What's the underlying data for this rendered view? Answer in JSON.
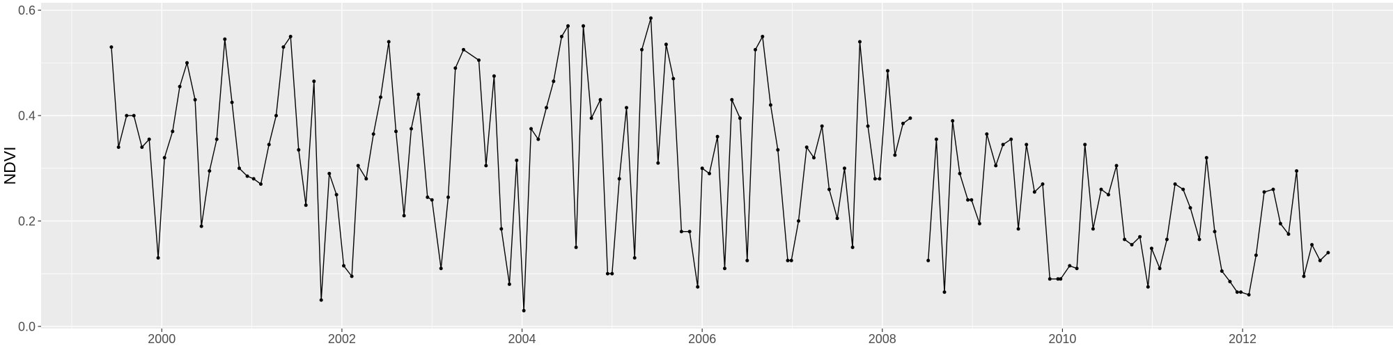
{
  "chart_data": {
    "type": "line",
    "title": "",
    "xlabel": "",
    "ylabel": "NDVI",
    "legend": false,
    "grid": true,
    "x_ticks": [
      2000,
      2002,
      2004,
      2006,
      2008,
      2010,
      2012
    ],
    "x_tick_labels": [
      "2000",
      "2002",
      "2004",
      "2006",
      "2008",
      "2010",
      "2012"
    ],
    "x_minor_ticks": [
      1999,
      2001,
      2003,
      2005,
      2007,
      2009,
      2011,
      2013
    ],
    "y_ticks": [
      0.0,
      0.2,
      0.4,
      0.6
    ],
    "y_tick_labels": [
      "0.0",
      "0.2",
      "0.4",
      "0.6"
    ],
    "y_minor_ticks": [
      0.1,
      0.3,
      0.5
    ],
    "xlim": [
      1998.66,
      2013.67
    ],
    "ylim": [
      -0.004,
      0.614
    ],
    "colors": {
      "panel_background": "#EBEBEB",
      "grid_major": "#FFFFFF",
      "grid_minor": "#FFFFFF",
      "line": "#000000",
      "point": "#000000",
      "axis_text": "#4D4D4D",
      "axis_title": "#000000",
      "tick_mark": "#333333"
    },
    "series": [
      {
        "name": "NDVI",
        "segments": [
          [
            [
              1999.44,
              0.53
            ],
            [
              1999.52,
              0.34
            ],
            [
              1999.61,
              0.4
            ],
            [
              1999.69,
              0.4
            ],
            [
              1999.78,
              0.34
            ],
            [
              1999.86,
              0.355
            ],
            [
              1999.96,
              0.13
            ],
            [
              2000.03,
              0.32
            ],
            [
              2000.12,
              0.37
            ],
            [
              2000.2,
              0.455
            ],
            [
              2000.28,
              0.5
            ],
            [
              2000.37,
              0.43
            ],
            [
              2000.44,
              0.19
            ],
            [
              2000.53,
              0.295
            ],
            [
              2000.61,
              0.355
            ],
            [
              2000.7,
              0.545
            ],
            [
              2000.78,
              0.425
            ],
            [
              2000.86,
              0.3
            ],
            [
              2000.95,
              0.285
            ],
            [
              2001.02,
              0.28
            ],
            [
              2001.1,
              0.27
            ],
            [
              2001.19,
              0.345
            ],
            [
              2001.27,
              0.4
            ],
            [
              2001.35,
              0.53
            ],
            [
              2001.43,
              0.55
            ],
            [
              2001.52,
              0.335
            ],
            [
              2001.6,
              0.23
            ],
            [
              2001.69,
              0.465
            ],
            [
              2001.77,
              0.05
            ],
            [
              2001.86,
              0.29
            ],
            [
              2001.94,
              0.25
            ],
            [
              2002.02,
              0.115
            ],
            [
              2002.11,
              0.095
            ],
            [
              2002.18,
              0.305
            ],
            [
              2002.27,
              0.28
            ],
            [
              2002.35,
              0.365
            ],
            [
              2002.43,
              0.435
            ],
            [
              2002.52,
              0.54
            ],
            [
              2002.6,
              0.37
            ],
            [
              2002.69,
              0.21
            ],
            [
              2002.77,
              0.375
            ],
            [
              2002.85,
              0.44
            ],
            [
              2002.95,
              0.245
            ],
            [
              2003.0,
              0.24
            ],
            [
              2003.1,
              0.11
            ],
            [
              2003.18,
              0.245
            ],
            [
              2003.26,
              0.49
            ],
            [
              2003.35,
              0.525
            ],
            [
              2003.52,
              0.505
            ],
            [
              2003.6,
              0.305
            ],
            [
              2003.69,
              0.475
            ],
            [
              2003.77,
              0.185
            ],
            [
              2003.86,
              0.08
            ],
            [
              2003.94,
              0.315
            ],
            [
              2004.02,
              0.03
            ],
            [
              2004.1,
              0.375
            ],
            [
              2004.18,
              0.355
            ],
            [
              2004.27,
              0.415
            ],
            [
              2004.35,
              0.465
            ],
            [
              2004.44,
              0.55
            ],
            [
              2004.51,
              0.57
            ],
            [
              2004.6,
              0.15
            ],
            [
              2004.68,
              0.57
            ],
            [
              2004.77,
              0.395
            ],
            [
              2004.87,
              0.43
            ],
            [
              2004.95,
              0.1
            ],
            [
              2005.0,
              0.1
            ],
            [
              2005.08,
              0.28
            ],
            [
              2005.16,
              0.415
            ],
            [
              2005.25,
              0.13
            ],
            [
              2005.33,
              0.525
            ],
            [
              2005.43,
              0.585
            ],
            [
              2005.51,
              0.31
            ],
            [
              2005.6,
              0.535
            ],
            [
              2005.68,
              0.47
            ],
            [
              2005.77,
              0.18
            ],
            [
              2005.86,
              0.18
            ],
            [
              2005.95,
              0.075
            ],
            [
              2006.0,
              0.3
            ],
            [
              2006.08,
              0.29
            ],
            [
              2006.17,
              0.36
            ],
            [
              2006.25,
              0.11
            ],
            [
              2006.33,
              0.43
            ],
            [
              2006.42,
              0.395
            ],
            [
              2006.5,
              0.125
            ],
            [
              2006.59,
              0.525
            ],
            [
              2006.67,
              0.55
            ],
            [
              2006.76,
              0.42
            ],
            [
              2006.84,
              0.335
            ],
            [
              2006.95,
              0.125
            ],
            [
              2006.99,
              0.125
            ],
            [
              2007.07,
              0.2
            ],
            [
              2007.16,
              0.34
            ],
            [
              2007.24,
              0.32
            ],
            [
              2007.33,
              0.38
            ],
            [
              2007.41,
              0.26
            ],
            [
              2007.5,
              0.205
            ],
            [
              2007.58,
              0.3
            ],
            [
              2007.67,
              0.15
            ],
            [
              2007.75,
              0.54
            ],
            [
              2007.84,
              0.38
            ],
            [
              2007.92,
              0.28
            ],
            [
              2007.97,
              0.28
            ],
            [
              2008.06,
              0.485
            ],
            [
              2008.14,
              0.325
            ],
            [
              2008.23,
              0.385
            ],
            [
              2008.31,
              0.395
            ]
          ],
          [
            [
              2008.51,
              0.125
            ],
            [
              2008.6,
              0.355
            ],
            [
              2008.69,
              0.065
            ],
            [
              2008.78,
              0.39
            ],
            [
              2008.86,
              0.29
            ],
            [
              2008.95,
              0.24
            ],
            [
              2008.99,
              0.24
            ],
            [
              2009.08,
              0.195
            ],
            [
              2009.16,
              0.365
            ],
            [
              2009.26,
              0.305
            ],
            [
              2009.34,
              0.345
            ],
            [
              2009.43,
              0.355
            ],
            [
              2009.51,
              0.185
            ],
            [
              2009.6,
              0.345
            ],
            [
              2009.69,
              0.255
            ],
            [
              2009.78,
              0.27
            ],
            [
              2009.86,
              0.09
            ],
            [
              2009.95,
              0.09
            ],
            [
              2009.98,
              0.09
            ],
            [
              2010.08,
              0.115
            ],
            [
              2010.16,
              0.11
            ],
            [
              2010.25,
              0.345
            ],
            [
              2010.34,
              0.185
            ],
            [
              2010.43,
              0.26
            ],
            [
              2010.51,
              0.25
            ],
            [
              2010.6,
              0.305
            ],
            [
              2010.69,
              0.165
            ],
            [
              2010.77,
              0.155
            ],
            [
              2010.86,
              0.17
            ],
            [
              2010.95,
              0.075
            ],
            [
              2010.99,
              0.148
            ],
            [
              2011.08,
              0.11
            ],
            [
              2011.16,
              0.165
            ],
            [
              2011.25,
              0.27
            ],
            [
              2011.34,
              0.26
            ],
            [
              2011.42,
              0.225
            ],
            [
              2011.52,
              0.165
            ],
            [
              2011.6,
              0.32
            ],
            [
              2011.69,
              0.18
            ],
            [
              2011.77,
              0.105
            ],
            [
              2011.86,
              0.085
            ],
            [
              2011.94,
              0.065
            ],
            [
              2011.98,
              0.065
            ],
            [
              2012.07,
              0.06
            ],
            [
              2012.15,
              0.135
            ],
            [
              2012.24,
              0.255
            ],
            [
              2012.34,
              0.26
            ],
            [
              2012.42,
              0.195
            ],
            [
              2012.51,
              0.175
            ],
            [
              2012.6,
              0.295
            ],
            [
              2012.68,
              0.095
            ],
            [
              2012.77,
              0.155
            ],
            [
              2012.86,
              0.125
            ],
            [
              2012.95,
              0.14
            ]
          ]
        ]
      }
    ]
  }
}
